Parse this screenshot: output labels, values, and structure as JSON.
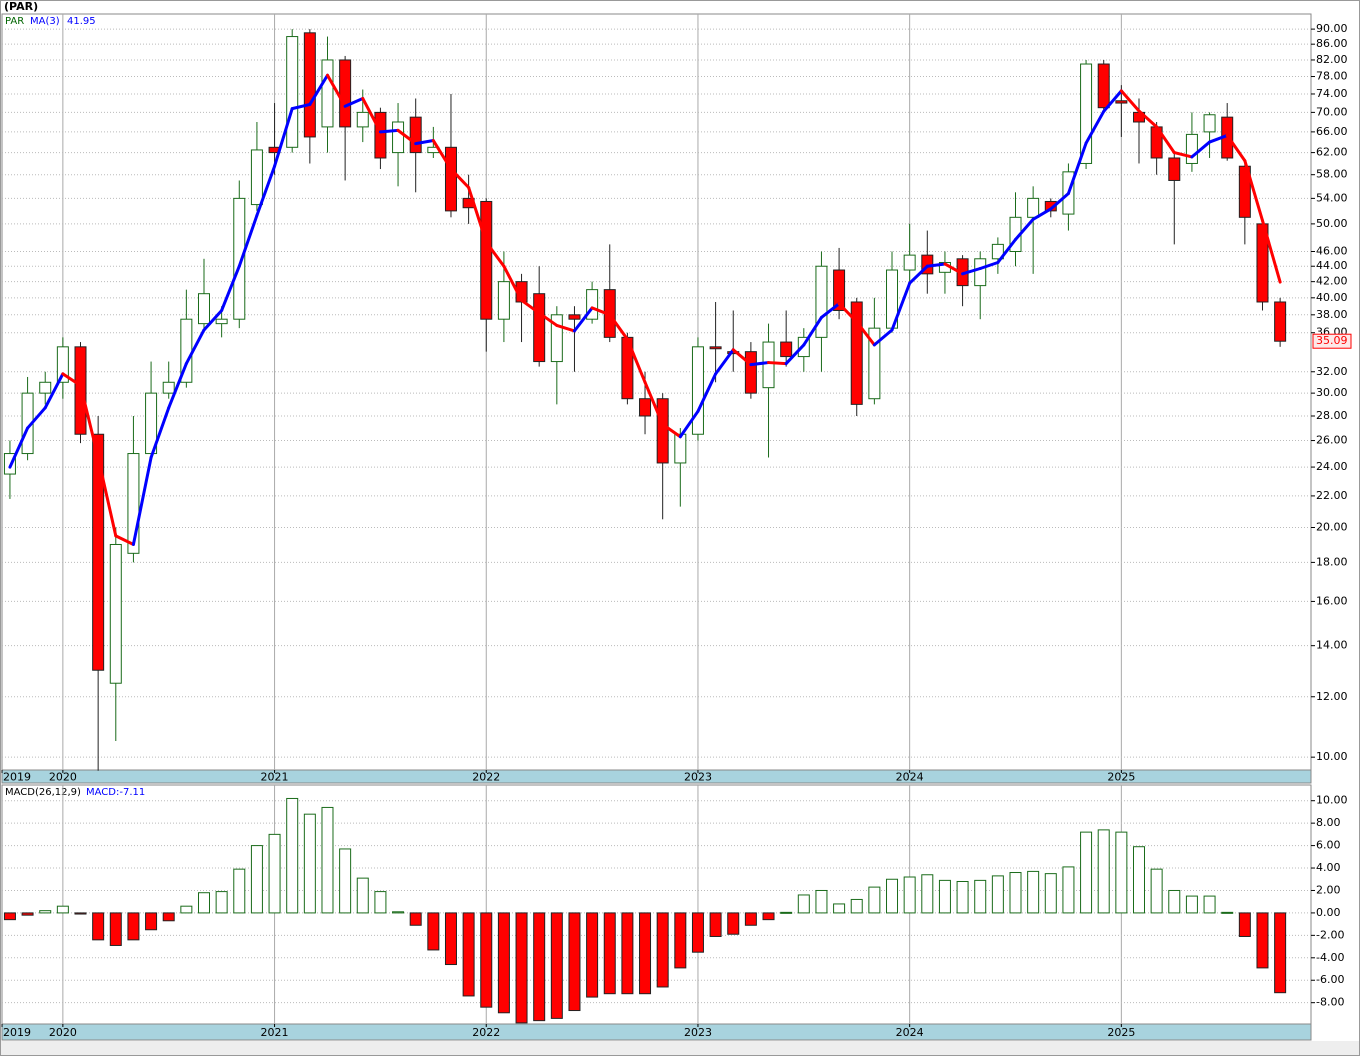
{
  "title": "(PAR)",
  "chart_data": [
    {
      "type": "candlestick",
      "log": true,
      "grid": true,
      "xlim": [
        -0.45,
        73.75
      ],
      "xticks": [
        {
          "value": -0.45,
          "label": "2019"
        },
        {
          "value": 3,
          "label": "2020"
        },
        {
          "value": 15,
          "label": "2021"
        },
        {
          "value": 27,
          "label": "2022"
        },
        {
          "value": 39,
          "label": "2023"
        },
        {
          "value": 51,
          "label": "2024"
        },
        {
          "value": 63,
          "label": "2025"
        }
      ],
      "ylim": [
        9.62,
        94.2
      ],
      "yticks": [
        {
          "value": 10,
          "label": "10.00"
        },
        {
          "value": 12,
          "label": "12.00"
        },
        {
          "value": 14,
          "label": "14.00"
        },
        {
          "value": 16,
          "label": "16.00"
        },
        {
          "value": 18,
          "label": "18.00"
        },
        {
          "value": 20,
          "label": "20.00"
        },
        {
          "value": 22,
          "label": "22.00"
        },
        {
          "value": 24,
          "label": "24.00"
        },
        {
          "value": 26,
          "label": "26.00"
        },
        {
          "value": 28,
          "label": "28.00"
        },
        {
          "value": 30,
          "label": "30.00"
        },
        {
          "value": 32,
          "label": "32.00"
        },
        {
          "value": 36,
          "label": "36.00"
        },
        {
          "value": 38,
          "label": "38.00"
        },
        {
          "value": 40,
          "label": "40.00"
        },
        {
          "value": 42,
          "label": "42.00"
        },
        {
          "value": 44,
          "label": "44.00"
        },
        {
          "value": 46,
          "label": "46.00"
        },
        {
          "value": 50,
          "label": "50.00"
        },
        {
          "value": 54,
          "label": "54.00"
        },
        {
          "value": 58,
          "label": "58.00"
        },
        {
          "value": 62,
          "label": "62.00"
        },
        {
          "value": 66,
          "label": "66.00"
        },
        {
          "value": 70,
          "label": "70.00"
        },
        {
          "value": 74,
          "label": "74.00"
        },
        {
          "value": 78,
          "label": "78.00"
        },
        {
          "value": 82,
          "label": "82.00"
        },
        {
          "value": 86,
          "label": "86.00"
        },
        {
          "value": 90,
          "label": "90.00"
        }
      ],
      "series": [
        {
          "name": "PAR",
          "color": "#006400",
          "up_color": "#1a6b1a",
          "down_color": "#ff0000",
          "open": [
            23.5,
            25,
            30,
            31,
            34.5,
            26.5,
            12.5,
            18.5,
            25,
            30,
            31,
            37,
            37,
            37.5,
            53,
            63,
            63,
            89,
            67,
            82,
            67,
            70,
            62,
            69,
            62,
            63,
            54,
            53.5,
            37.5,
            42,
            40.5,
            33,
            38,
            37.5,
            41,
            35.5,
            29.5,
            29.5,
            24.3,
            26.5,
            34.5,
            34,
            34,
            30.5,
            35,
            33.5,
            35.5,
            43.5,
            39.5,
            29.5,
            36.5,
            43.5,
            45.5,
            43.2,
            45,
            41.5,
            45,
            46,
            51,
            53.5,
            51.5,
            60,
            81,
            72.5,
            70,
            67,
            61,
            60,
            66,
            69,
            59.5,
            50,
            39.5
          ],
          "high": [
            26,
            31.5,
            32,
            35.5,
            35,
            28,
            20,
            28,
            33,
            33,
            41,
            45,
            39,
            57,
            68,
            72,
            90,
            90,
            88,
            83,
            75,
            71,
            72,
            73,
            67,
            74,
            58,
            54,
            46,
            43,
            44,
            39,
            39,
            42,
            47,
            36,
            32,
            30,
            27,
            35.5,
            39.5,
            38.5,
            35,
            37,
            38.5,
            36.5,
            46,
            46.5,
            40,
            40,
            46,
            50,
            49,
            46,
            45.5,
            46,
            48,
            55,
            56,
            54,
            60,
            82,
            82,
            76,
            73,
            68,
            62,
            70,
            70,
            72,
            60,
            50,
            40
          ],
          "low": [
            21.8,
            24.5,
            29,
            29.5,
            25.8,
            9.6,
            10.5,
            18,
            24.5,
            29.5,
            30.5,
            36,
            35.5,
            36.5,
            52,
            58,
            62,
            60,
            62,
            57,
            64,
            59,
            56,
            55,
            61,
            51,
            50,
            34,
            35,
            35,
            32.5,
            29,
            32,
            37,
            35,
            29,
            26.5,
            20.5,
            21.3,
            26,
            31,
            32,
            29.5,
            24.7,
            32.5,
            32,
            32,
            37.5,
            28,
            29,
            36,
            41.5,
            40.5,
            40.5,
            39,
            37.5,
            43,
            44,
            43,
            51,
            49,
            59,
            70,
            65,
            60,
            58,
            47,
            58.5,
            61,
            60.5,
            47,
            38.5,
            34.5
          ],
          "close": [
            25,
            30,
            31,
            34.5,
            26.5,
            13,
            19,
            25,
            30,
            31,
            37.5,
            40.5,
            37.5,
            54,
            62.5,
            62,
            88,
            65,
            82,
            67,
            70,
            61,
            68,
            62,
            63,
            52,
            52.5,
            37.5,
            42,
            39.5,
            33,
            38,
            37.5,
            41,
            35.5,
            29.5,
            28,
            24.3,
            26.5,
            34.5,
            34.3,
            33.8,
            30,
            35,
            33.5,
            35.5,
            44,
            38.5,
            29,
            36.5,
            43.5,
            45.5,
            43,
            44.5,
            41.5,
            45,
            47,
            51,
            54,
            52,
            58.5,
            81,
            71,
            72,
            68,
            61,
            57,
            65.5,
            69.5,
            61,
            51,
            39.5,
            35.09
          ]
        },
        {
          "name": "MA(3)",
          "rise_color": "#0000ff",
          "fall_color": "#ff0000",
          "values": [
            24,
            27,
            28.7,
            31.8,
            30.7,
            24.7,
            19.5,
            19,
            24.7,
            28.7,
            32.8,
            36.3,
            38.5,
            44,
            51.3,
            59.5,
            70.8,
            71.7,
            78.3,
            71.3,
            73,
            66,
            66.3,
            63.7,
            64.3,
            59,
            55.8,
            47.3,
            44,
            39.7,
            38.2,
            36.8,
            36.2,
            38.8,
            38,
            35.3,
            31,
            27.3,
            26.3,
            28.4,
            31.8,
            34.2,
            32.7,
            32.9,
            32.8,
            34.7,
            37.7,
            39.3,
            37.2,
            34.7,
            36.3,
            41.8,
            44,
            44.3,
            43,
            43.7,
            44.5,
            47.7,
            50.7,
            52.3,
            54.8,
            63.8,
            70.2,
            74.7,
            70.3,
            67,
            62,
            61.2,
            64,
            65.3,
            60.5,
            50.5,
            41.95
          ]
        }
      ]
    },
    {
      "type": "bar",
      "name": "MACD(26,12,9)",
      "value_label": "MACD:-7.11",
      "grid": true,
      "pos_color": "#1a6b1a",
      "neg_color": "#ff0000",
      "xlim": [
        -0.45,
        73.75
      ],
      "xticks": [
        {
          "value": -0.45,
          "label": "2019"
        },
        {
          "value": 3,
          "label": "2020"
        },
        {
          "value": 15,
          "label": "2021"
        },
        {
          "value": 27,
          "label": "2022"
        },
        {
          "value": 39,
          "label": "2023"
        },
        {
          "value": 51,
          "label": "2024"
        },
        {
          "value": 63,
          "label": "2025"
        }
      ],
      "ylim": [
        -9.9,
        11.4
      ],
      "yticks": [
        {
          "value": -8,
          "label": "-8.00"
        },
        {
          "value": -6,
          "label": "-6.00"
        },
        {
          "value": -4,
          "label": "-4.00"
        },
        {
          "value": -2,
          "label": "-2.00"
        },
        {
          "value": 0,
          "label": "0.00"
        },
        {
          "value": 2,
          "label": "2.00"
        },
        {
          "value": 4,
          "label": "4.00"
        },
        {
          "value": 6,
          "label": "6.00"
        },
        {
          "value": 8,
          "label": "8.00"
        },
        {
          "value": 10,
          "label": "10.00"
        }
      ],
      "values": [
        -0.6,
        -0.2,
        0.2,
        0.6,
        -0.1,
        -2.4,
        -2.9,
        -2.4,
        -1.5,
        -0.7,
        0.6,
        1.8,
        1.9,
        3.9,
        6.0,
        7.0,
        10.2,
        8.8,
        9.4,
        5.7,
        3.1,
        1.9,
        0.1,
        -1.1,
        -3.3,
        -4.6,
        -7.4,
        -8.4,
        -8.9,
        -9.8,
        -9.6,
        -9.4,
        -8.7,
        -7.5,
        -7.2,
        -7.2,
        -7.2,
        -6.6,
        -4.9,
        -3.5,
        -2.1,
        -1.9,
        -1.1,
        -0.6,
        0.05,
        1.6,
        2.0,
        0.8,
        1.2,
        2.3,
        3.0,
        3.2,
        3.4,
        2.9,
        2.8,
        2.9,
        3.3,
        3.6,
        3.7,
        3.5,
        4.1,
        7.2,
        7.4,
        7.2,
        5.9,
        3.9,
        2.0,
        1.5,
        1.5,
        0.05,
        -2.1,
        -4.9,
        -7.11
      ]
    }
  ]
}
